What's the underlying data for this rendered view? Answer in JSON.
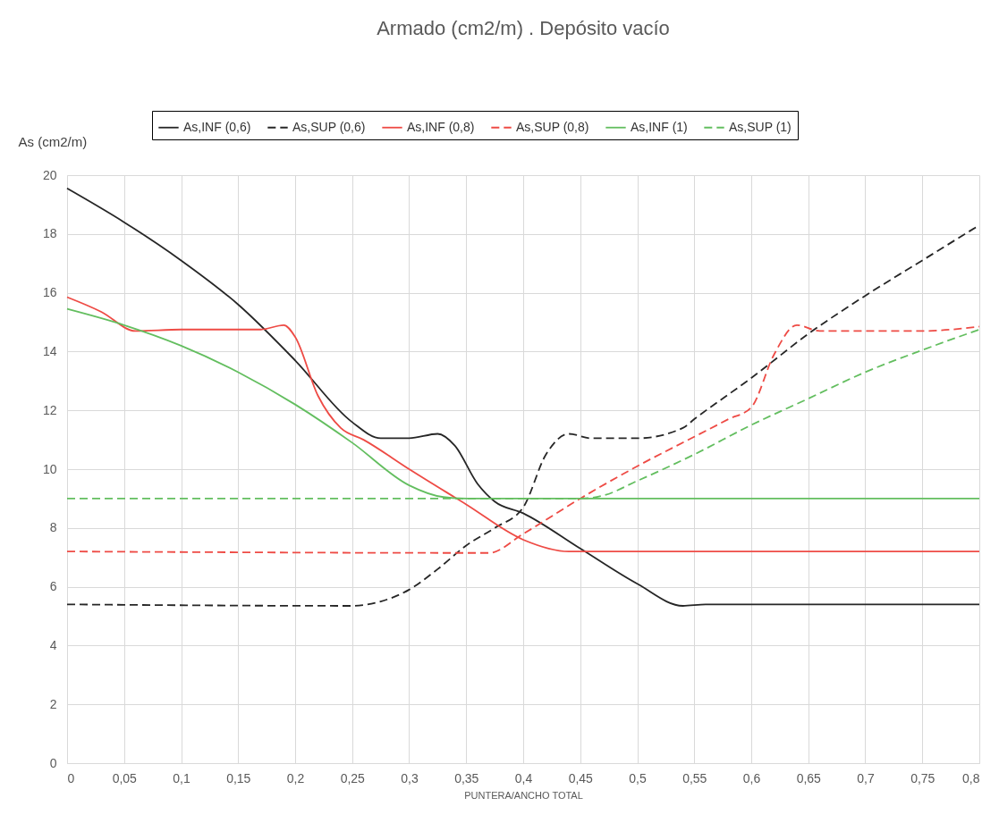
{
  "chart_data": {
    "type": "line",
    "title": "Armado (cm2/m) . Depósito vacío",
    "xlabel": "PUNTERA/ANCHO TOTAL",
    "ylabel": "As (cm2/m)",
    "xlim": [
      0,
      0.8
    ],
    "ylim": [
      0,
      20
    ],
    "xticks": [
      0,
      {
        "value": 0.05,
        "label": "0,05"
      },
      {
        "value": 0.1,
        "label": "0,1"
      },
      {
        "value": 0.15,
        "label": "0,15"
      },
      {
        "value": 0.2,
        "label": "0,2"
      },
      {
        "value": 0.25,
        "label": "0,25"
      },
      {
        "value": 0.3,
        "label": "0,3"
      },
      {
        "value": 0.35,
        "label": "0,35"
      },
      {
        "value": 0.4,
        "label": "0,4"
      },
      {
        "value": 0.45,
        "label": "0,45"
      },
      {
        "value": 0.5,
        "label": "0,5"
      },
      {
        "value": 0.55,
        "label": "0,55"
      },
      {
        "value": 0.6,
        "label": "0,6"
      },
      {
        "value": 0.65,
        "label": "0,65"
      },
      {
        "value": 0.7,
        "label": "0,7"
      },
      {
        "value": 0.75,
        "label": "0,75"
      },
      {
        "value": 0.8,
        "label": "0,8"
      }
    ],
    "yticks": [
      0,
      2,
      4,
      6,
      8,
      10,
      12,
      14,
      16,
      18,
      20
    ],
    "grid": true,
    "legend": "top",
    "marker": "none",
    "series": [
      {
        "name": "As,INF (0,6)",
        "color": "#262626",
        "line_style": "solid",
        "x": [
          0,
          0.05,
          0.1,
          0.15,
          0.2,
          0.25,
          0.275,
          0.3,
          0.325,
          0.34,
          0.36,
          0.375,
          0.4,
          0.45,
          0.5,
          0.54,
          0.56,
          0.8
        ],
        "values": [
          19.55,
          18.4,
          17.1,
          15.6,
          13.7,
          11.6,
          11.05,
          11.05,
          11.2,
          10.8,
          9.5,
          8.9,
          8.5,
          7.3,
          6.1,
          5.35,
          5.4,
          5.4
        ]
      },
      {
        "name": "As,SUP (0,6)",
        "color": "#262626",
        "line_style": "dashed",
        "x": [
          0,
          0.25,
          0.275,
          0.3,
          0.325,
          0.35,
          0.375,
          0.4,
          0.42,
          0.44,
          0.46,
          0.5,
          0.54,
          0.55,
          0.6,
          0.65,
          0.7,
          0.75,
          0.8
        ],
        "values": [
          5.4,
          5.35,
          5.5,
          5.9,
          6.6,
          7.4,
          8.0,
          8.7,
          10.5,
          11.2,
          11.05,
          11.05,
          11.4,
          11.7,
          13.1,
          14.6,
          15.9,
          17.1,
          18.3
        ]
      },
      {
        "name": "As,INF (0,8)",
        "color": "#ee4b45",
        "line_style": "solid",
        "x": [
          0,
          0.03,
          0.06,
          0.1,
          0.17,
          0.19,
          0.2,
          0.22,
          0.24,
          0.26,
          0.3,
          0.35,
          0.4,
          0.44,
          0.8
        ],
        "values": [
          15.85,
          15.35,
          14.7,
          14.75,
          14.75,
          14.9,
          14.5,
          12.5,
          11.4,
          11.0,
          10.0,
          8.8,
          7.6,
          7.2,
          7.2
        ]
      },
      {
        "name": "As,SUP (0,8)",
        "color": "#ee4b45",
        "line_style": "dashed",
        "x": [
          0,
          0.37,
          0.4,
          0.45,
          0.5,
          0.55,
          0.58,
          0.6,
          0.62,
          0.64,
          0.66,
          0.75,
          0.8
        ],
        "values": [
          7.2,
          7.15,
          7.8,
          9.0,
          10.1,
          11.1,
          11.7,
          12.1,
          13.9,
          14.9,
          14.7,
          14.7,
          14.85
        ]
      },
      {
        "name": "As,INF (1)",
        "color": "#63be5f",
        "line_style": "solid",
        "x": [
          0,
          0.05,
          0.1,
          0.15,
          0.2,
          0.25,
          0.3,
          0.33,
          0.35,
          0.8
        ],
        "values": [
          15.45,
          14.9,
          14.2,
          13.3,
          12.2,
          10.9,
          9.45,
          9.05,
          9.0,
          9.0
        ]
      },
      {
        "name": "As,SUP (1)",
        "color": "#63be5f",
        "line_style": "dashed",
        "x": [
          0,
          0.45,
          0.47,
          0.5,
          0.55,
          0.6,
          0.65,
          0.7,
          0.75,
          0.8
        ],
        "values": [
          9.0,
          9.0,
          9.1,
          9.6,
          10.5,
          11.5,
          12.4,
          13.3,
          14.05,
          14.75
        ]
      }
    ]
  }
}
